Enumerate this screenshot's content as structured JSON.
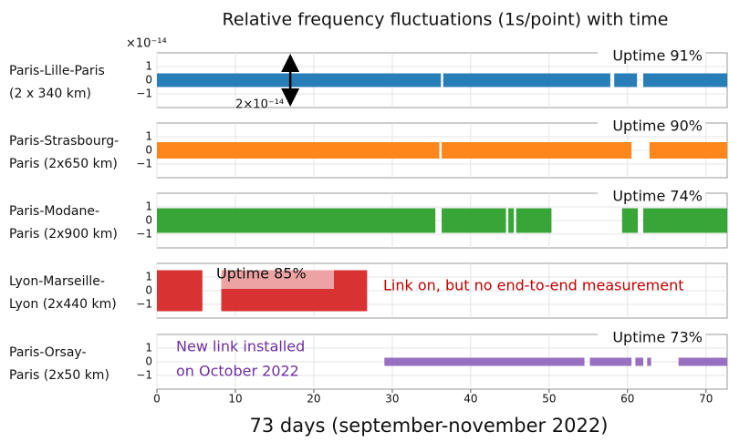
{
  "title": "Relative frequency fluctuations (1s/point) with time",
  "xlabel": "73 days (september-november 2022)",
  "exponent": "×10⁻¹⁴",
  "xlim": [
    0,
    72.7
  ],
  "xticks": [
    0,
    10,
    20,
    30,
    40,
    50,
    60,
    70
  ],
  "chart_data": [
    {
      "type": "band",
      "label": [
        "Paris-Lille-Paris",
        "(2 x 340 km)"
      ],
      "annotation": "Uptime 91%",
      "color": "#1f77b4",
      "ylim": [
        -2,
        2
      ],
      "yticks": [
        {
          "value": -1,
          "label": "−1"
        },
        0,
        1
      ],
      "grid": true,
      "segments": [
        {
          "x": [
            0,
            36.2
          ],
          "y": [
            -0.5,
            0.5
          ]
        },
        {
          "x": [
            36.5,
            57.8
          ],
          "y": [
            -0.5,
            0.5
          ]
        },
        {
          "x": [
            58.3,
            61.2
          ],
          "y": [
            -0.5,
            0.5
          ]
        },
        {
          "x": [
            62,
            72.7
          ],
          "y": [
            -0.5,
            0.5
          ]
        }
      ],
      "arrow": {
        "x": 17,
        "y": [
          -1,
          1
        ],
        "label": "2×10⁻¹⁴"
      }
    },
    {
      "type": "band",
      "label": [
        "Paris-Strasbourg-",
        "Paris (2x650  km)"
      ],
      "annotation": "Uptime 90%",
      "color": "#ff7f0e",
      "ylim": [
        -2,
        2
      ],
      "yticks": [
        {
          "value": -1,
          "label": "−1"
        },
        0,
        1
      ],
      "grid": true,
      "segments": [
        {
          "x": [
            0,
            36
          ],
          "y": [
            -0.6,
            0.6
          ]
        },
        {
          "x": [
            36.3,
            60.5
          ],
          "y": [
            -0.6,
            0.6
          ]
        },
        {
          "x": [
            62.8,
            72.7
          ],
          "y": [
            -0.6,
            0.6
          ]
        }
      ]
    },
    {
      "type": "band",
      "label": [
        "Paris-Modane-",
        "Paris (2x900  km)"
      ],
      "annotation": "Uptime 74%",
      "color": "#2ca02c",
      "ylim": [
        -2,
        2
      ],
      "yticks": [
        {
          "value": -1,
          "label": "−1"
        },
        0,
        1
      ],
      "grid": true,
      "segments": [
        {
          "x": [
            0,
            35.5
          ],
          "y": [
            -0.9,
            0.9
          ]
        },
        {
          "x": [
            36.3,
            44.5
          ],
          "y": [
            -0.9,
            0.9
          ]
        },
        {
          "x": [
            44.8,
            45.5
          ],
          "y": [
            -0.9,
            0.9
          ]
        },
        {
          "x": [
            45.8,
            50.3
          ],
          "y": [
            -0.9,
            0.9
          ]
        },
        {
          "x": [
            59.3,
            61.3
          ],
          "y": [
            -0.9,
            0.9
          ]
        },
        {
          "x": [
            62,
            72.7
          ],
          "y": [
            -0.9,
            0.9
          ]
        }
      ]
    },
    {
      "type": "band",
      "label": [
        "Lyon-Marseille-",
        "Lyon (2x440  km)"
      ],
      "annotation": "Uptime 85%",
      "color": "#d62728",
      "ylim": [
        -2,
        2
      ],
      "yticks": [
        {
          "value": -1,
          "label": "−1"
        },
        0,
        1
      ],
      "grid": true,
      "segments": [
        {
          "x": [
            0,
            5.8
          ],
          "y": [
            -1.5,
            1.5
          ]
        },
        {
          "x": [
            8.2,
            26.8
          ],
          "y": [
            -1.5,
            1.5
          ]
        }
      ],
      "note": [
        "Link on, but no end-to-end measurement"
      ],
      "note_color": "#c00000"
    },
    {
      "type": "band",
      "label": [
        "Paris-Orsay-",
        "Paris (2x50  km)"
      ],
      "annotation": "Uptime 73%",
      "color": "#9467bd",
      "ylim": [
        -2,
        2
      ],
      "yticks": [
        {
          "value": -1,
          "label": "−1"
        },
        0,
        1
      ],
      "grid": true,
      "segments": [
        {
          "x": [
            29,
            54.5
          ],
          "y": [
            -0.3,
            0.3
          ]
        },
        {
          "x": [
            55.2,
            60.5
          ],
          "y": [
            -0.3,
            0.3
          ]
        },
        {
          "x": [
            61,
            62
          ],
          "y": [
            -0.3,
            0.3
          ]
        },
        {
          "x": [
            62.5,
            63
          ],
          "y": [
            -0.3,
            0.3
          ]
        },
        {
          "x": [
            66.5,
            72.7
          ],
          "y": [
            -0.3,
            0.3
          ]
        }
      ],
      "note": [
        "New link installed",
        "on October 2022"
      ],
      "note_color": "#7030a0"
    }
  ]
}
